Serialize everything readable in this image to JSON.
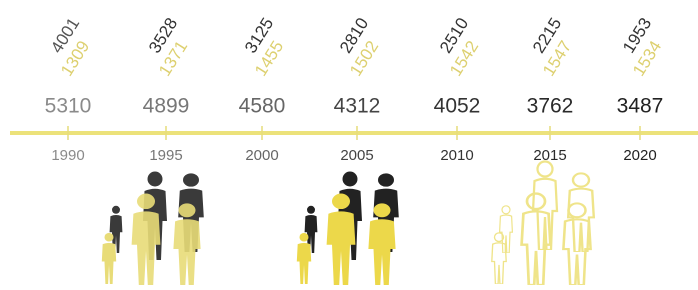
{
  "timeline": {
    "years": [
      "1990",
      "1995",
      "2000",
      "2005",
      "2010",
      "2015",
      "2020"
    ],
    "totals": [
      "5310",
      "4899",
      "4580",
      "4312",
      "4052",
      "3762",
      "3487"
    ],
    "dark_values": [
      "4001",
      "3528",
      "3125",
      "2810",
      "2510",
      "2215",
      "1953"
    ],
    "yellow_values": [
      "1309",
      "1371",
      "1455",
      "1502",
      "1542",
      "1547",
      "1534"
    ]
  }
}
